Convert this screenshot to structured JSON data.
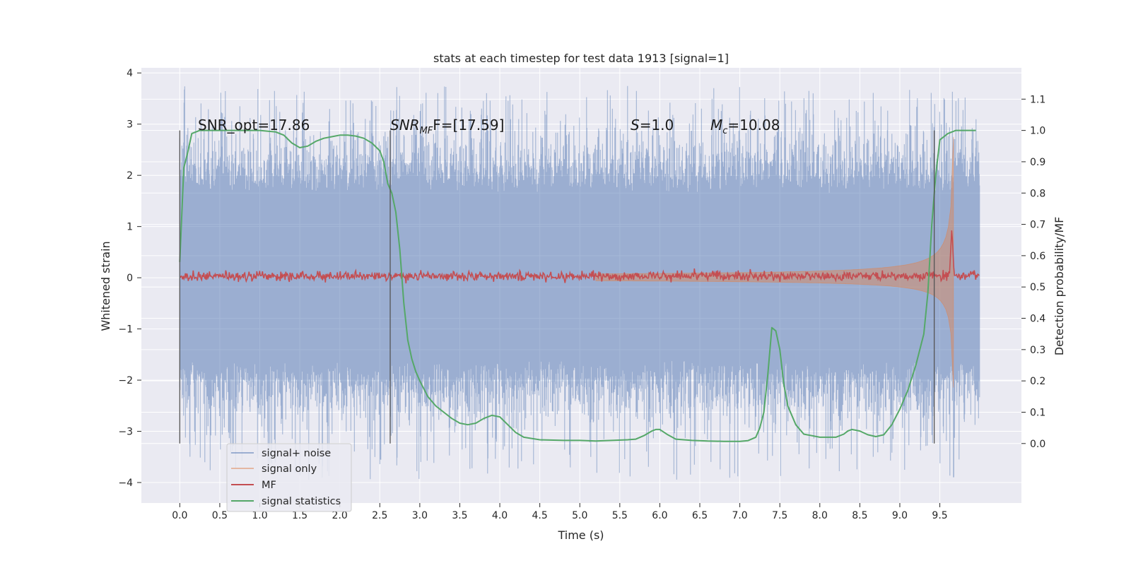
{
  "chart_data": {
    "type": "line",
    "title": "stats at each timestep for test data 1913 [signal=1]",
    "xlabel": "Time (s)",
    "ylabel": "Whitened strain",
    "y2label": "Detection probability/MF",
    "xlim": [
      -0.48,
      10.52
    ],
    "ylim": [
      -4.4,
      4.1
    ],
    "y2lim": [
      -0.19,
      1.2
    ],
    "x_ticks": [
      "0.0",
      "0.5",
      "1.0",
      "1.5",
      "2.0",
      "2.5",
      "3.0",
      "3.5",
      "4.0",
      "4.5",
      "5.0",
      "5.5",
      "6.0",
      "6.5",
      "7.0",
      "7.5",
      "8.0",
      "8.5",
      "9.0",
      "9.5"
    ],
    "y_ticks": [
      "4",
      "3",
      "2",
      "1",
      "0",
      "−1",
      "−2",
      "−3",
      "−4"
    ],
    "y2_ticks": [
      "1.1",
      "1.0",
      "0.9",
      "0.8",
      "0.7",
      "0.6",
      "0.5",
      "0.4",
      "0.3",
      "0.2",
      "0.1",
      "0.0"
    ],
    "grid": true,
    "legend_position": "lower-left",
    "annotations": {
      "snr_opt": "SNR_opt=17.86",
      "snr_mf_base": "SNR",
      "snr_mf_sub": "MF",
      "snr_mf_rest": "F=[17.59]",
      "s_base": "S",
      "s_rest": "=1.0",
      "mc_base": "M",
      "mc_sub": "c",
      "mc_rest": "=10.08"
    },
    "vlines_x": [
      0.0,
      2.63,
      9.43
    ],
    "series": [
      {
        "name": "signal+ noise",
        "color": "#4c72b0",
        "kind": "noise",
        "x_range": [
          0.0,
          10.0
        ],
        "envelope_y": [
          -1.6,
          1.65
        ],
        "spike_range": [
          -3.95,
          3.75
        ]
      },
      {
        "name": "signal only",
        "color": "#dd8452",
        "kind": "chirp",
        "x_range": [
          5.2,
          9.67
        ],
        "amp_y_start": 0.02,
        "amp_y_end": 2.75
      },
      {
        "name": "MF",
        "color": "#c44e52",
        "kind": "mf",
        "x_range": [
          0.0,
          10.0
        ],
        "level_y2": 0.535,
        "peak_x": 9.65,
        "peak_y2": 0.69
      },
      {
        "name": "signal statistics",
        "color": "#55a868",
        "kind": "line",
        "x": [
          0.0,
          0.05,
          0.1,
          0.15,
          0.25,
          0.4,
          0.6,
          0.8,
          1.0,
          1.2,
          1.3,
          1.4,
          1.5,
          1.6,
          1.7,
          1.8,
          1.9,
          2.0,
          2.1,
          2.2,
          2.3,
          2.4,
          2.5,
          2.55,
          2.6,
          2.65,
          2.7,
          2.75,
          2.8,
          2.85,
          2.9,
          2.95,
          3.0,
          3.1,
          3.2,
          3.3,
          3.4,
          3.5,
          3.6,
          3.7,
          3.8,
          3.9,
          4.0,
          4.1,
          4.2,
          4.3,
          4.5,
          4.8,
          5.0,
          5.2,
          5.4,
          5.6,
          5.7,
          5.8,
          5.9,
          5.95,
          6.0,
          6.1,
          6.2,
          6.4,
          6.6,
          6.8,
          7.0,
          7.1,
          7.2,
          7.25,
          7.3,
          7.35,
          7.4,
          7.45,
          7.5,
          7.55,
          7.6,
          7.7,
          7.8,
          8.0,
          8.2,
          8.3,
          8.35,
          8.4,
          8.5,
          8.6,
          8.7,
          8.8,
          8.9,
          9.0,
          9.1,
          9.2,
          9.3,
          9.35,
          9.4,
          9.45,
          9.5,
          9.6,
          9.7,
          9.8,
          9.9,
          9.95
        ],
        "y": [
          0.58,
          0.88,
          0.93,
          0.99,
          1.0,
          1.0,
          1.0,
          1.0,
          1.0,
          0.995,
          0.985,
          0.96,
          0.945,
          0.95,
          0.965,
          0.975,
          0.98,
          0.985,
          0.985,
          0.982,
          0.975,
          0.96,
          0.935,
          0.9,
          0.83,
          0.8,
          0.74,
          0.62,
          0.45,
          0.33,
          0.27,
          0.23,
          0.2,
          0.15,
          0.12,
          0.1,
          0.08,
          0.065,
          0.06,
          0.065,
          0.08,
          0.09,
          0.085,
          0.06,
          0.035,
          0.02,
          0.012,
          0.01,
          0.01,
          0.008,
          0.01,
          0.012,
          0.014,
          0.025,
          0.04,
          0.045,
          0.045,
          0.028,
          0.014,
          0.01,
          0.008,
          0.007,
          0.007,
          0.009,
          0.02,
          0.05,
          0.1,
          0.22,
          0.37,
          0.36,
          0.3,
          0.19,
          0.12,
          0.06,
          0.03,
          0.02,
          0.02,
          0.03,
          0.04,
          0.045,
          0.04,
          0.028,
          0.022,
          0.028,
          0.06,
          0.11,
          0.17,
          0.25,
          0.35,
          0.48,
          0.7,
          0.86,
          0.97,
          0.99,
          1.0,
          1.0,
          1.0,
          1.0
        ]
      }
    ]
  }
}
